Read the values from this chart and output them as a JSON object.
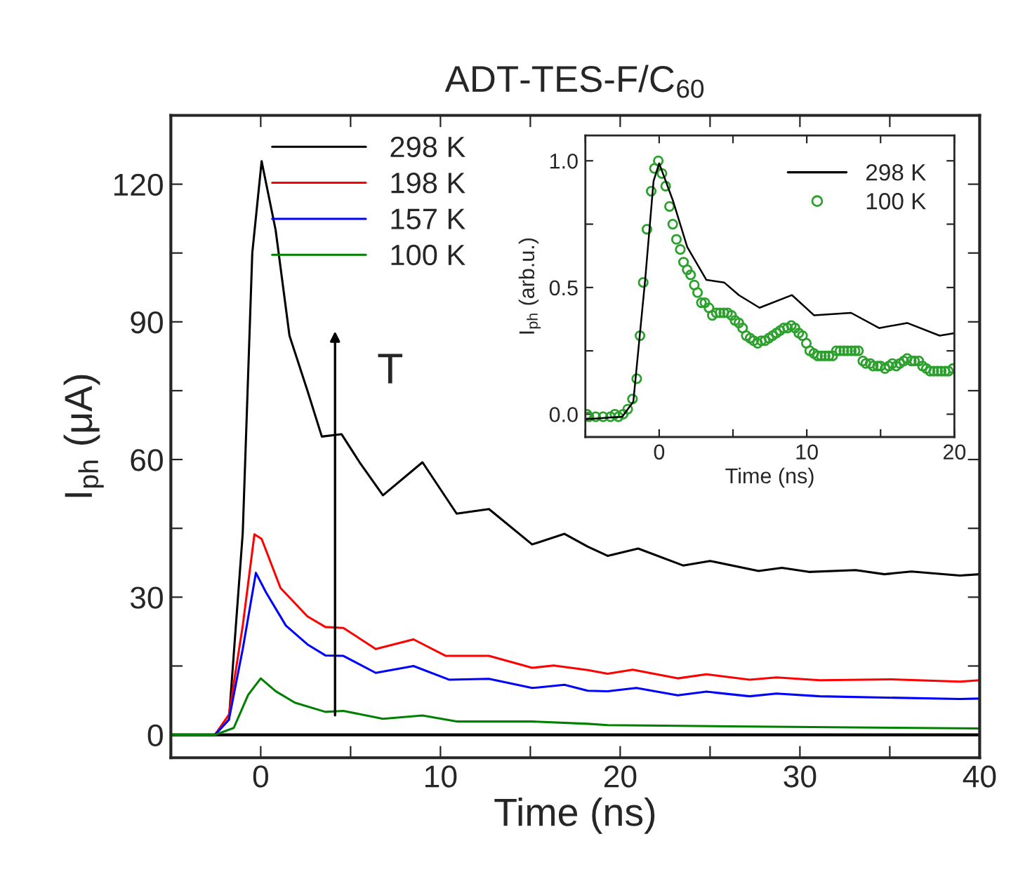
{
  "chart_data": [
    {
      "type": "line",
      "title": "ADT-TES-F/C$_{60}$",
      "xlabel": "Time (ns)",
      "ylabel": "I$_{ph}$ (μA)",
      "xlim": [
        -5,
        40
      ],
      "xticks": [
        {
          "value": -5,
          "label": null
        },
        0,
        {
          "value": 5,
          "label": null
        },
        10,
        {
          "value": 15,
          "label": null
        },
        20,
        {
          "value": 25,
          "label": null
        },
        30,
        {
          "value": 35,
          "label": null
        },
        40
      ],
      "ylim": [
        -5,
        135
      ],
      "yticks": [
        0,
        {
          "value": 15,
          "label": null
        },
        30,
        {
          "value": 45,
          "label": null
        },
        60,
        {
          "value": 75,
          "label": null
        },
        90,
        {
          "value": 105,
          "label": null
        },
        120
      ],
      "grid": false,
      "legend": "top left",
      "ref_lines": [
        {
          "axis": "y",
          "value": 0,
          "color": "#000000"
        }
      ],
      "annotations": [
        "T"
      ],
      "series": [
        {
          "name": "298 K",
          "color": "#000000",
          "x": [
            -5,
            -2.55,
            -1.77,
            -1.0,
            -0.47,
            0.05,
            0.83,
            1.6,
            2.6,
            3.4,
            4.5,
            5.5,
            6.8,
            9.0,
            10.9,
            12.7,
            15.1,
            16.9,
            18.2,
            19.3,
            21.0,
            23.5,
            25.0,
            27.7,
            29.0,
            30.5,
            33.1,
            34.7,
            36.2,
            38.9,
            40
          ],
          "values": [
            0,
            0,
            3.3,
            44,
            105,
            125,
            110,
            87,
            75,
            65,
            65.5,
            59.4,
            52.2,
            59.4,
            48.2,
            49.2,
            41.5,
            43.8,
            41,
            39,
            40.6,
            36.9,
            37.9,
            35.7,
            36.4,
            35.5,
            35.9,
            35.0,
            35.6,
            34.7,
            35
          ]
        },
        {
          "name": "198 K",
          "color": "#ff0000",
          "x": [
            -5,
            -2.55,
            -1.77,
            -1.0,
            -0.35,
            0.05,
            1.1,
            2.6,
            3.6,
            4.6,
            6.4,
            8.5,
            10.3,
            12.7,
            15.1,
            16.3,
            18.2,
            19.3,
            20.7,
            23.2,
            24.8,
            27.2,
            28.7,
            31.1,
            35,
            38.9,
            40
          ],
          "values": [
            0,
            0,
            4.4,
            23.8,
            43.7,
            42.7,
            32,
            25.8,
            23.5,
            23.3,
            18.7,
            20.8,
            17.2,
            17.2,
            14.6,
            15.1,
            14.1,
            13.3,
            14.2,
            12.3,
            13.2,
            12.0,
            12.5,
            11.9,
            12.1,
            11.6,
            11.9
          ]
        },
        {
          "name": "157 K",
          "color": "#0000ff",
          "x": [
            -5,
            -2.55,
            -1.77,
            -1.0,
            -0.27,
            0.3,
            1.4,
            2.6,
            3.6,
            4.6,
            6.4,
            8.5,
            10.5,
            12.7,
            15.1,
            16.9,
            18.2,
            19.3,
            20.9,
            23.2,
            24.8,
            27.2,
            28.7,
            31.1,
            38.9,
            40
          ],
          "values": [
            0,
            0,
            3.3,
            18.7,
            35.3,
            31,
            23.8,
            19.7,
            17.3,
            17.2,
            13.5,
            15,
            12,
            12.2,
            10.2,
            10.9,
            9.6,
            9.5,
            10.2,
            8.6,
            9.4,
            8.4,
            9.0,
            8.4,
            7.8,
            7.9
          ]
        },
        {
          "name": "100 K",
          "color": "#008000",
          "x": [
            -5,
            -2.55,
            -1.5,
            -0.7,
            0.0,
            0.83,
            1.9,
            3.6,
            4.6,
            6.8,
            9.0,
            10.9,
            15.1,
            18.2,
            19.3,
            27.2,
            40
          ],
          "values": [
            0,
            0,
            1.5,
            8.7,
            12.3,
            9.5,
            7,
            5,
            5.2,
            3.5,
            4.2,
            2.9,
            2.9,
            2.4,
            2.1,
            1.8,
            1.4
          ]
        }
      ]
    },
    {
      "type": "line",
      "xlabel": "Time (ns)",
      "ylabel": "I$_{ph}$ (arb.u.)",
      "xlim": [
        -5,
        20
      ],
      "xticks": [
        {
          "value": -5,
          "label": null
        },
        0,
        {
          "value": 5,
          "label": null
        },
        10,
        {
          "value": 15,
          "label": null
        },
        20
      ],
      "ylim": [
        -0.09,
        1.1
      ],
      "yticks": [
        {
          "value": 0,
          "label": "0.0"
        },
        {
          "value": 0.25,
          "label": null
        },
        0.5,
        {
          "value": 0.75,
          "label": null
        },
        {
          "value": 1,
          "label": "1.0"
        }
      ],
      "grid": false,
      "legend": "top right",
      "series": [
        {
          "name": "298 K",
          "color": "#000000",
          "x": [
            -5,
            -2.5,
            -1.75,
            -0.95,
            -0.38,
            0,
            0.95,
            1.9,
            3.2,
            4.4,
            5.4,
            6.8,
            9.0,
            10.5,
            13.0,
            14.9,
            16.8,
            19.0,
            20
          ],
          "values": [
            -0.02,
            -0.01,
            0.05,
            0.53,
            0.92,
            0.99,
            0.84,
            0.66,
            0.53,
            0.52,
            0.47,
            0.42,
            0.47,
            0.39,
            0.4,
            0.34,
            0.36,
            0.31,
            0.32
          ]
        },
        {
          "name": "100 K",
          "type": "scatter",
          "marker": "circle",
          "color": "#2ca02c",
          "x": [
            -4.9,
            -4.76,
            -4.3,
            -3.8,
            -3.3,
            -3.0,
            -2.76,
            -2.44,
            -2.13,
            -1.81,
            -1.52,
            -1.3,
            -1.08,
            -0.83,
            -0.54,
            -0.32,
            -0.06,
            0.19,
            0.44,
            0.7,
            0.92,
            1.17,
            1.43,
            1.65,
            1.9,
            2.13,
            2.38,
            2.6,
            2.86,
            3.1,
            3.37,
            3.6,
            3.87,
            4.12,
            4.38,
            4.63,
            4.9,
            5.14,
            5.4,
            5.65,
            5.9,
            6.16,
            6.4,
            6.67,
            6.92,
            7.17,
            7.43,
            7.68,
            7.94,
            8.19,
            8.44,
            8.7,
            8.95,
            9.2,
            9.46,
            9.71,
            9.97,
            10.2,
            10.48,
            10.73,
            10.98,
            11.24,
            11.49,
            11.75,
            12.0,
            12.25,
            12.51,
            12.76,
            13.02,
            13.27,
            13.5,
            13.8,
            14.0,
            14.3,
            14.5,
            14.8,
            15.0,
            15.3,
            15.56,
            15.8,
            16.06,
            16.3,
            16.57,
            16.8,
            17.08,
            17.3,
            17.59,
            17.84,
            18.1,
            18.35,
            18.6,
            18.86,
            19.11,
            19.37,
            19.6,
            19.9
          ],
          "values": [
            0,
            -0.01,
            -0.01,
            -0.01,
            -0.01,
            0,
            -0.01,
            0,
            0.02,
            0.06,
            0.14,
            0.31,
            0.52,
            0.73,
            0.88,
            0.97,
            1.0,
            0.95,
            0.9,
            0.82,
            0.75,
            0.69,
            0.65,
            0.6,
            0.57,
            0.55,
            0.51,
            0.48,
            0.44,
            0.44,
            0.42,
            0.39,
            0.4,
            0.4,
            0.4,
            0.4,
            0.39,
            0.37,
            0.36,
            0.34,
            0.31,
            0.3,
            0.29,
            0.28,
            0.29,
            0.29,
            0.3,
            0.31,
            0.32,
            0.33,
            0.34,
            0.34,
            0.35,
            0.34,
            0.32,
            0.31,
            0.28,
            0.25,
            0.24,
            0.23,
            0.23,
            0.23,
            0.23,
            0.23,
            0.25,
            0.25,
            0.25,
            0.25,
            0.25,
            0.25,
            0.25,
            0.21,
            0.2,
            0.2,
            0.19,
            0.19,
            0.19,
            0.18,
            0.19,
            0.2,
            0.19,
            0.2,
            0.21,
            0.22,
            0.21,
            0.21,
            0.21,
            0.19,
            0.18,
            0.17,
            0.17,
            0.17,
            0.17,
            0.17,
            0.17,
            0.18
          ]
        }
      ]
    }
  ]
}
